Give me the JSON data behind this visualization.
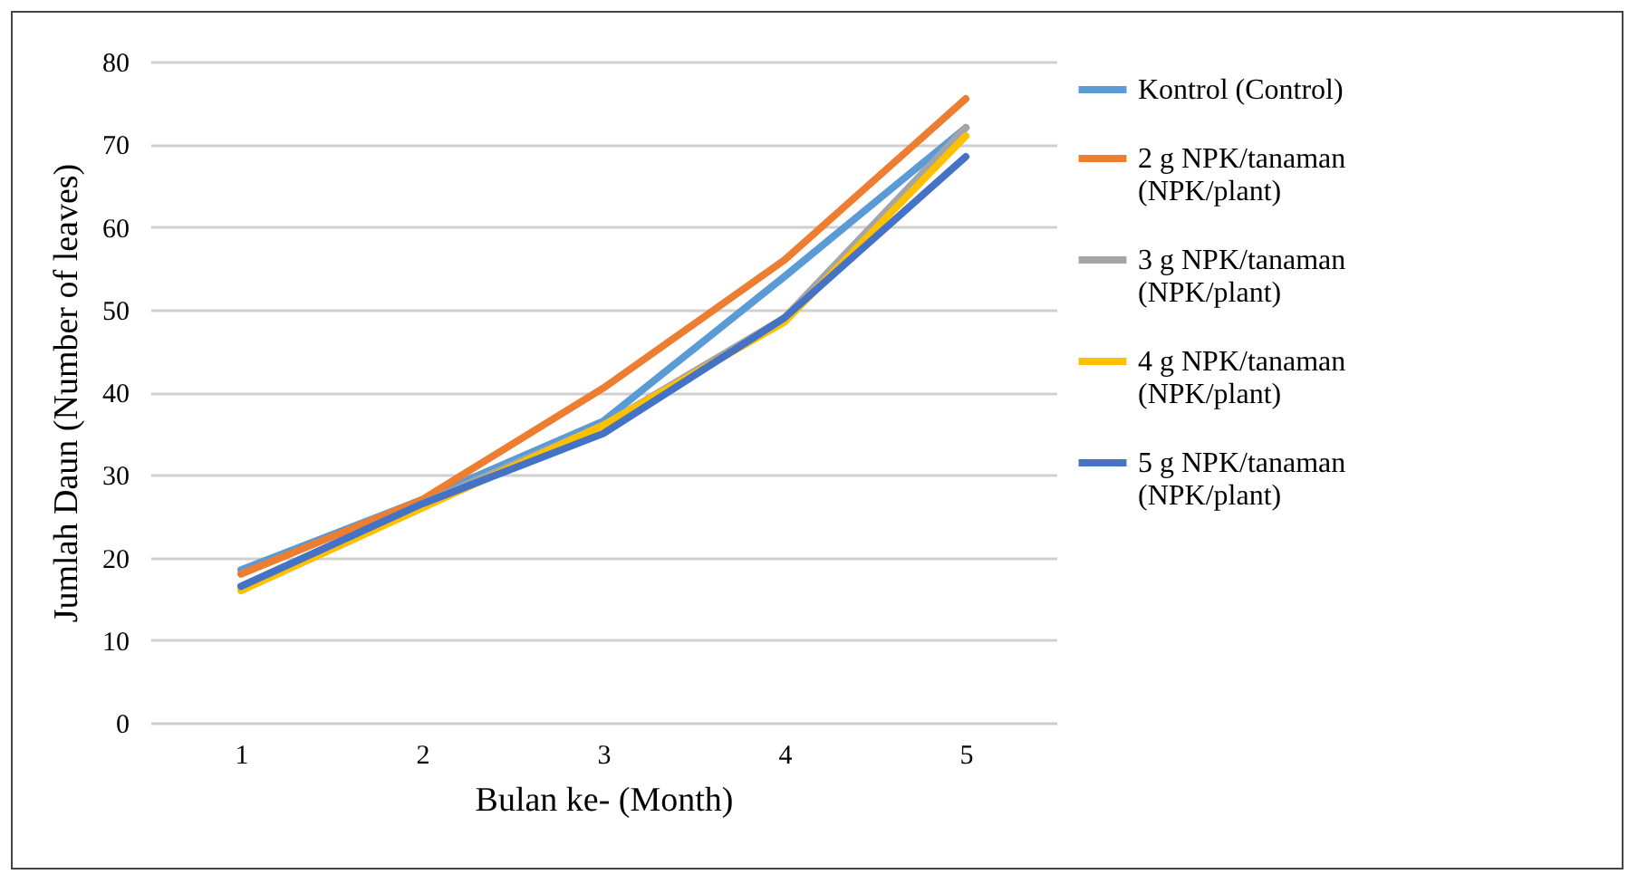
{
  "chart_data": {
    "type": "line",
    "xlabel": "Bulan ke- (Month)",
    "ylabel": "Jumlah Daun (Number of leaves)",
    "categories": [
      "1",
      "2",
      "3",
      "4",
      "5"
    ],
    "ylim": [
      0,
      80
    ],
    "yticks": [
      0,
      10,
      20,
      30,
      40,
      50,
      60,
      70,
      80
    ],
    "grid": "y",
    "legend": "right",
    "series": [
      {
        "name": "Kontrol (Control)",
        "color": "#5b9bd5",
        "values": [
          18.5,
          27,
          36.5,
          54,
          72
        ]
      },
      {
        "name": "2 g NPK/tanaman (NPK/plant)",
        "color": "#ed7d31",
        "values": [
          18,
          27,
          40.5,
          56,
          75.5
        ]
      },
      {
        "name": "3 g NPK/tanaman (NPK/plant)",
        "color": "#a5a5a5",
        "values": [
          16.5,
          26.5,
          36,
          49,
          72
        ]
      },
      {
        "name": "4 g NPK/tanaman (NPK/plant)",
        "color": "#ffc000",
        "values": [
          16,
          26,
          36,
          48.5,
          71
        ]
      },
      {
        "name": "5 g NPK/tanaman (NPK/plant)",
        "color": "#4472c4",
        "values": [
          16.5,
          26.5,
          35,
          49,
          68.5
        ]
      }
    ]
  }
}
